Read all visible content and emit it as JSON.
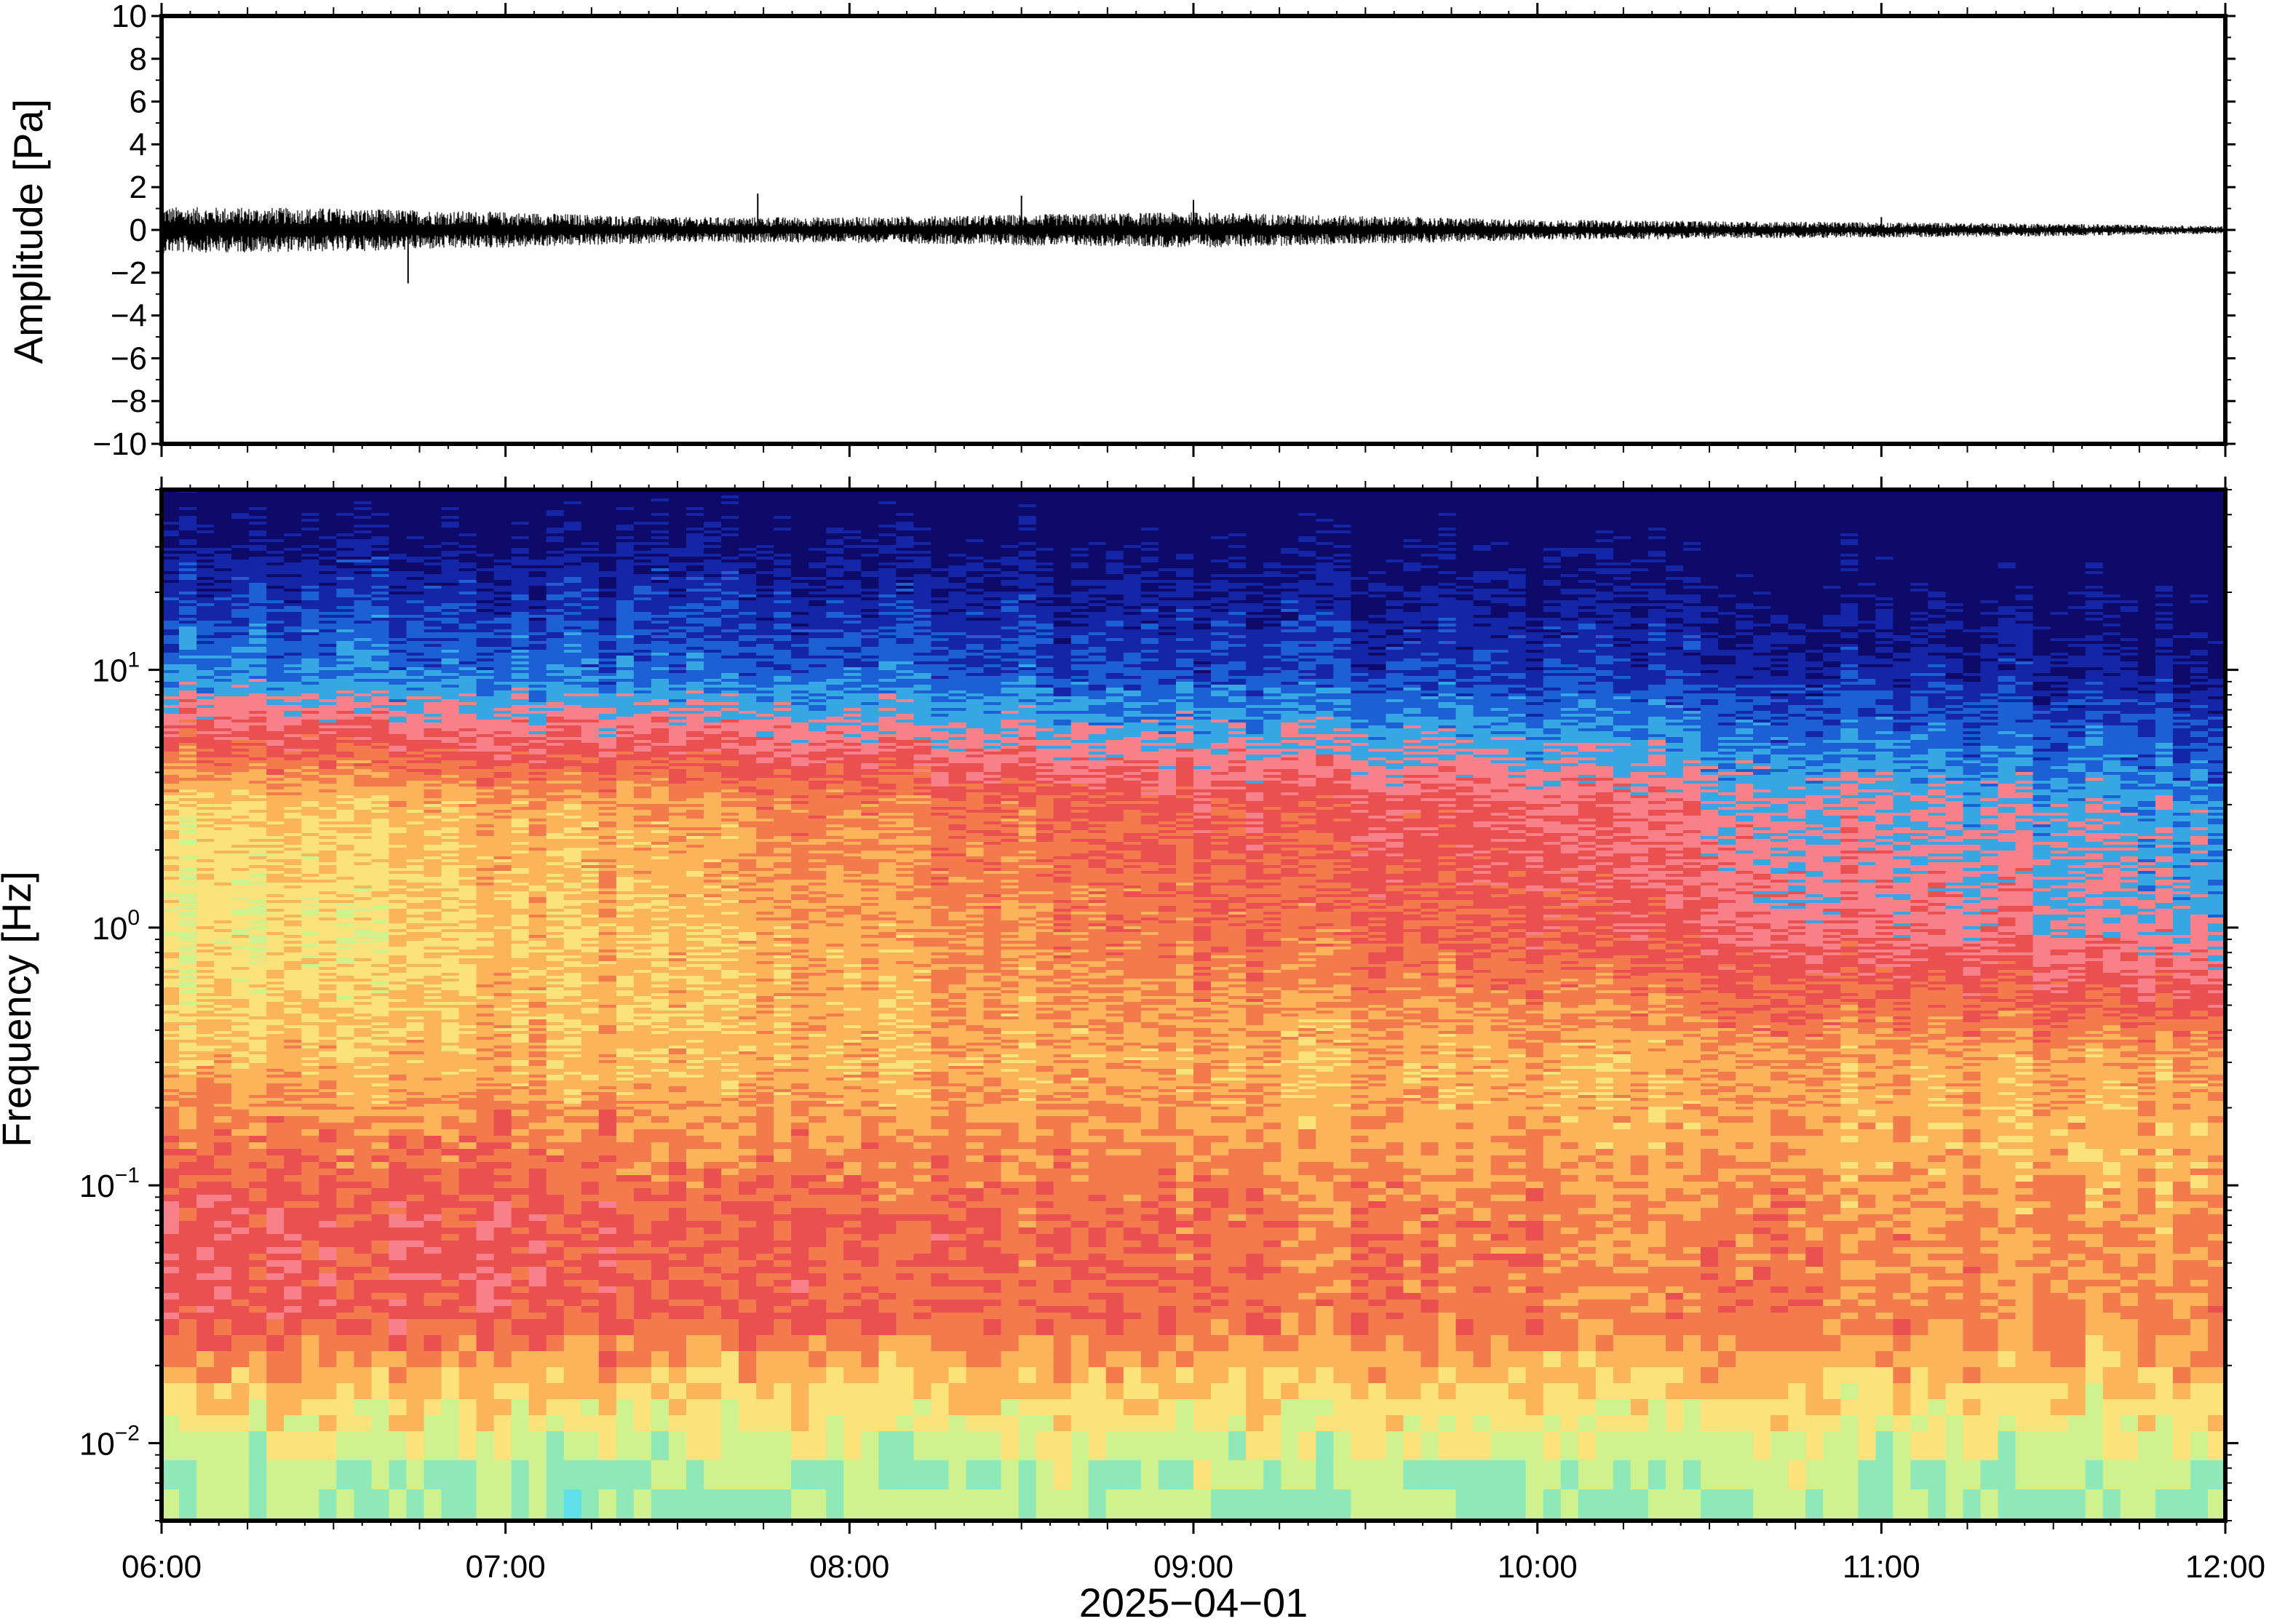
{
  "chart_data": [
    {
      "type": "line",
      "panel": "waveform",
      "ylabel": "Amplitude [Pa]",
      "ylim": [
        -10,
        10
      ],
      "yticks": [
        10,
        8,
        6,
        4,
        2,
        0,
        -2,
        -4,
        -6,
        -8,
        -10
      ],
      "ytick_labels": [
        "10",
        "8",
        "6",
        "4",
        "2",
        "0",
        "−2",
        "−4",
        "−6",
        "−8",
        "−10"
      ],
      "xlim": [
        "06:00",
        "12:00"
      ],
      "trace_color": "#000000",
      "amplitude_envelope": {
        "x": [
          "06:00",
          "06:30",
          "07:00",
          "07:30",
          "08:00",
          "08:30",
          "09:00",
          "09:30",
          "10:00",
          "10:30",
          "11:00",
          "11:30",
          "12:00"
        ],
        "y": [
          0.9,
          0.85,
          0.7,
          0.5,
          0.5,
          0.6,
          0.7,
          0.55,
          0.4,
          0.35,
          0.3,
          0.25,
          0.15
        ]
      },
      "spikes": [
        {
          "x": "06:43",
          "y": -2.5
        },
        {
          "x": "07:44",
          "y": 1.7
        },
        {
          "x": "08:30",
          "y": 1.6
        },
        {
          "x": "09:00",
          "y": 1.4
        },
        {
          "x": "11:00",
          "y": 0.6
        }
      ]
    },
    {
      "type": "heatmap",
      "panel": "spectrogram",
      "ylabel": "Frequency [Hz]",
      "yscale": "log",
      "ylim": [
        0.005,
        50
      ],
      "yticks": [
        0.01,
        0.1,
        1,
        10
      ],
      "ytick_labels": [
        {
          "base": "10",
          "exp": "−2"
        },
        {
          "base": "10",
          "exp": "−1"
        },
        {
          "base": "10",
          "exp": "0"
        },
        {
          "base": "10",
          "exp": "1"
        }
      ],
      "x_ticks": [
        "06:00",
        "07:00",
        "08:00",
        "09:00",
        "10:00",
        "11:00",
        "12:00"
      ],
      "xlabel": "2025−04−01",
      "colormap": [
        "#5fe0ea",
        "#8ee8b8",
        "#cff28f",
        "#fbe27a",
        "#fbb45a",
        "#f27a4c",
        "#ea5050",
        "#f7808a",
        "#37a7e3",
        "#1d5fd5",
        "#1525a8",
        "#0d0a6a"
      ],
      "description_bands": {
        "freq_hz": [
          50,
          30,
          10,
          3,
          1,
          0.3,
          0.15,
          0.07,
          0.03,
          0.015,
          0.007
        ],
        "early_level": [
          11.5,
          10.5,
          8.5,
          3.3,
          2.6,
          3.8,
          5.2,
          6.2,
          6.0,
          3.4,
          1.4
        ],
        "late_level": [
          11.9,
          11.5,
          10.5,
          8.2,
          7.6,
          4.2,
          3.8,
          4.4,
          4.6,
          3.2,
          1.5
        ]
      }
    }
  ]
}
